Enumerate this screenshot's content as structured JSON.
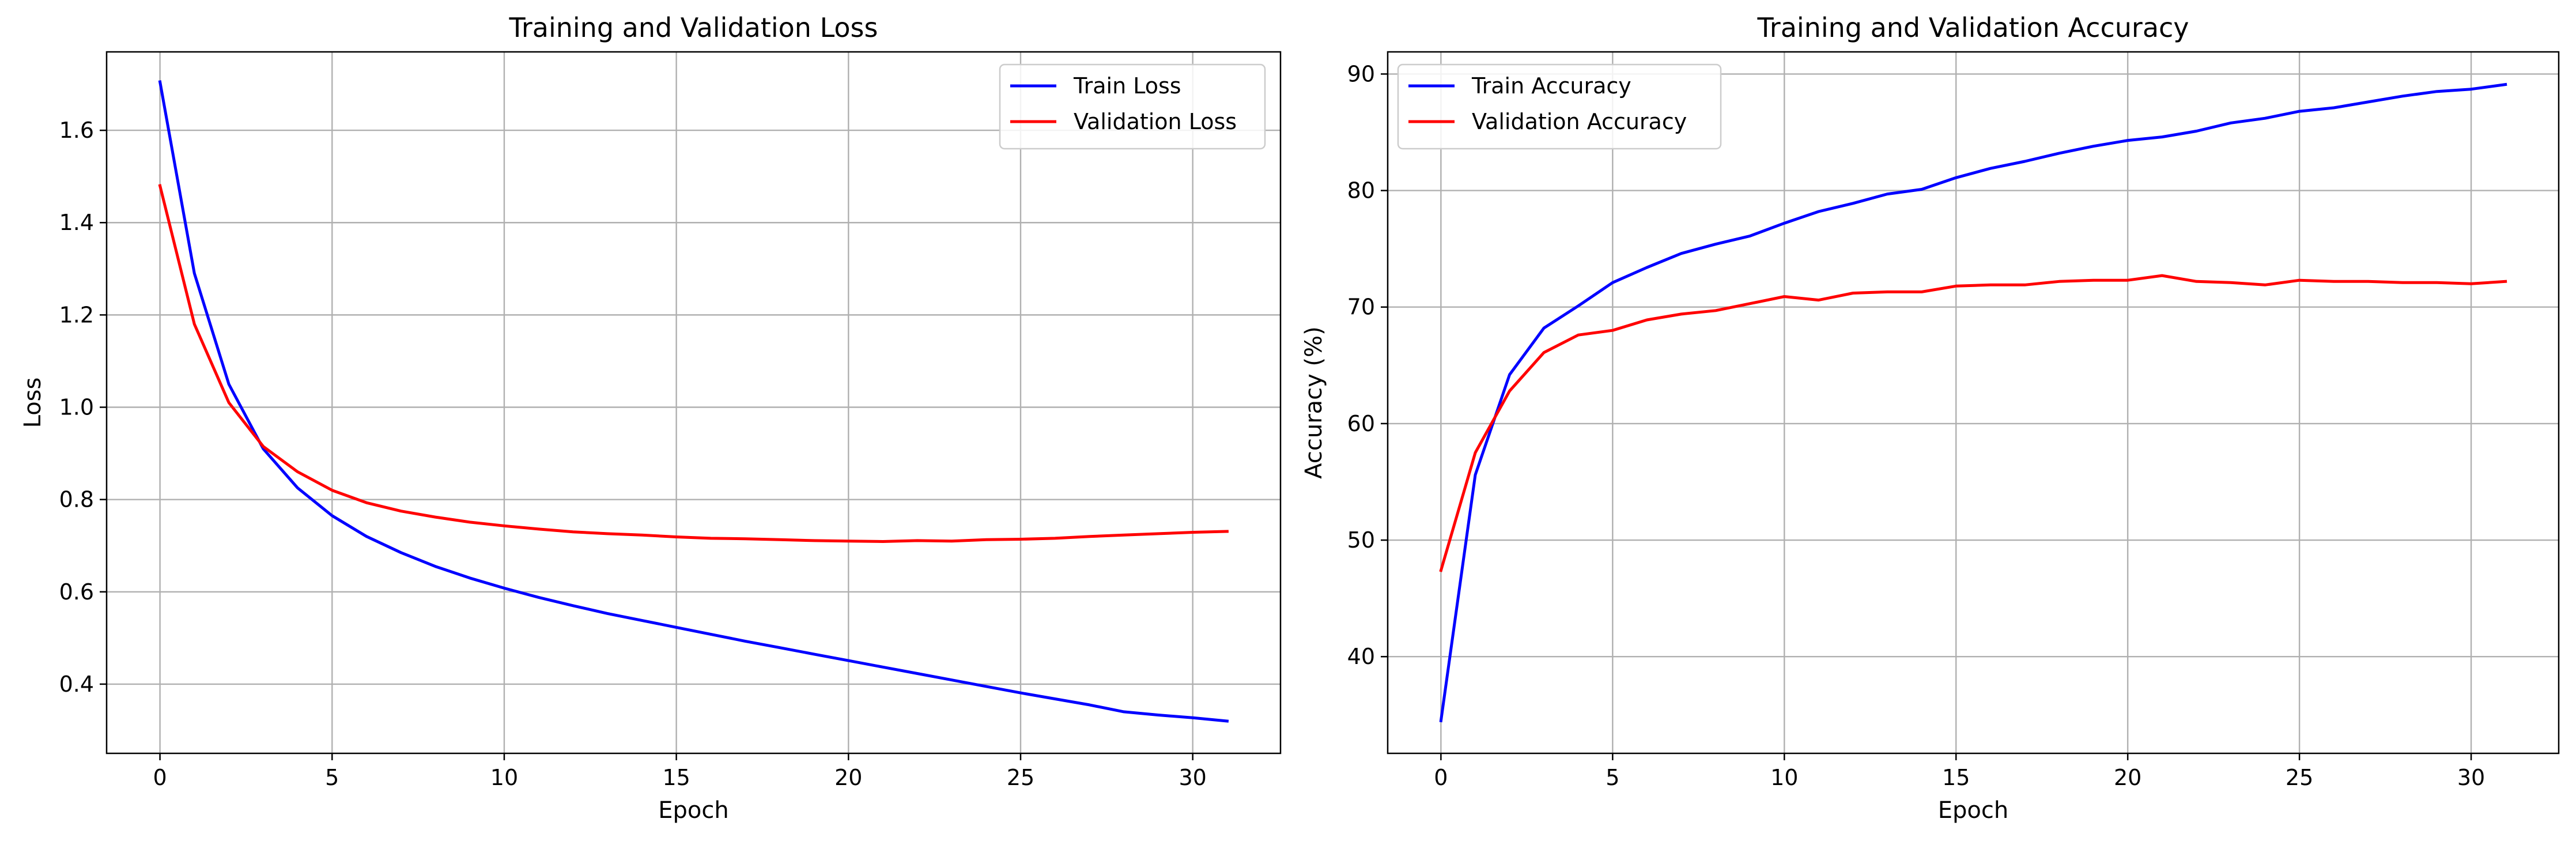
{
  "chart_data": [
    {
      "type": "line",
      "title": "Training and Validation Loss",
      "xlabel": "Epoch",
      "ylabel": "Loss",
      "xlim": [
        -1.55,
        32.55
      ],
      "ylim": [
        0.25,
        1.77
      ],
      "xticks": [
        0,
        5,
        10,
        15,
        20,
        25,
        30
      ],
      "yticks": [
        0.4,
        0.6,
        0.8,
        1.0,
        1.2,
        1.4,
        1.6
      ],
      "ytick_decimals": 1,
      "grid": true,
      "legend_position": "upper right",
      "x": [
        0,
        1,
        2,
        3,
        4,
        5,
        6,
        7,
        8,
        9,
        10,
        11,
        12,
        13,
        14,
        15,
        16,
        17,
        18,
        19,
        20,
        21,
        22,
        23,
        24,
        25,
        26,
        27,
        28,
        29,
        30,
        31
      ],
      "series": [
        {
          "name": "Train Loss",
          "color": "#0000ff",
          "values": [
            1.705,
            1.29,
            1.05,
            0.91,
            0.825,
            0.765,
            0.72,
            0.685,
            0.655,
            0.63,
            0.608,
            0.588,
            0.57,
            0.553,
            0.538,
            0.523,
            0.508,
            0.493,
            0.479,
            0.465,
            0.451,
            0.437,
            0.423,
            0.409,
            0.395,
            0.381,
            0.368,
            0.355,
            0.34,
            0.333,
            0.327,
            0.32
          ]
        },
        {
          "name": "Validation Loss",
          "color": "#ff0000",
          "values": [
            1.48,
            1.18,
            1.01,
            0.915,
            0.86,
            0.82,
            0.793,
            0.775,
            0.762,
            0.751,
            0.743,
            0.736,
            0.73,
            0.726,
            0.723,
            0.719,
            0.716,
            0.715,
            0.713,
            0.711,
            0.71,
            0.709,
            0.711,
            0.71,
            0.713,
            0.714,
            0.716,
            0.72,
            0.723,
            0.726,
            0.729,
            0.731
          ]
        }
      ]
    },
    {
      "type": "line",
      "title": "Training and Validation Accuracy",
      "xlabel": "Epoch",
      "ylabel": "Accuracy (%)",
      "xlim": [
        -1.55,
        32.55
      ],
      "ylim": [
        31.7,
        91.9
      ],
      "xticks": [
        0,
        5,
        10,
        15,
        20,
        25,
        30
      ],
      "yticks": [
        40,
        50,
        60,
        70,
        80,
        90
      ],
      "ytick_decimals": 0,
      "grid": true,
      "legend_position": "upper left",
      "x": [
        0,
        1,
        2,
        3,
        4,
        5,
        6,
        7,
        8,
        9,
        10,
        11,
        12,
        13,
        14,
        15,
        16,
        17,
        18,
        19,
        20,
        21,
        22,
        23,
        24,
        25,
        26,
        27,
        28,
        29,
        30,
        31
      ],
      "series": [
        {
          "name": "Train Accuracy",
          "color": "#0000ff",
          "values": [
            34.5,
            55.6,
            64.2,
            68.2,
            70.1,
            72.1,
            73.4,
            74.6,
            75.4,
            76.1,
            77.2,
            78.2,
            78.9,
            79.7,
            80.1,
            81.1,
            81.9,
            82.5,
            83.2,
            83.8,
            84.3,
            84.6,
            85.1,
            85.8,
            86.2,
            86.8,
            87.1,
            87.6,
            88.1,
            88.5,
            88.7,
            89.1
          ]
        },
        {
          "name": "Validation Accuracy",
          "color": "#ff0000",
          "values": [
            47.4,
            57.5,
            62.8,
            66.1,
            67.6,
            68.0,
            68.9,
            69.4,
            69.7,
            70.3,
            70.9,
            70.6,
            71.2,
            71.3,
            71.3,
            71.8,
            71.9,
            71.9,
            72.2,
            72.3,
            72.3,
            72.7,
            72.2,
            72.1,
            71.9,
            72.3,
            72.2,
            72.2,
            72.1,
            72.1,
            72.0,
            72.2
          ]
        }
      ]
    }
  ]
}
